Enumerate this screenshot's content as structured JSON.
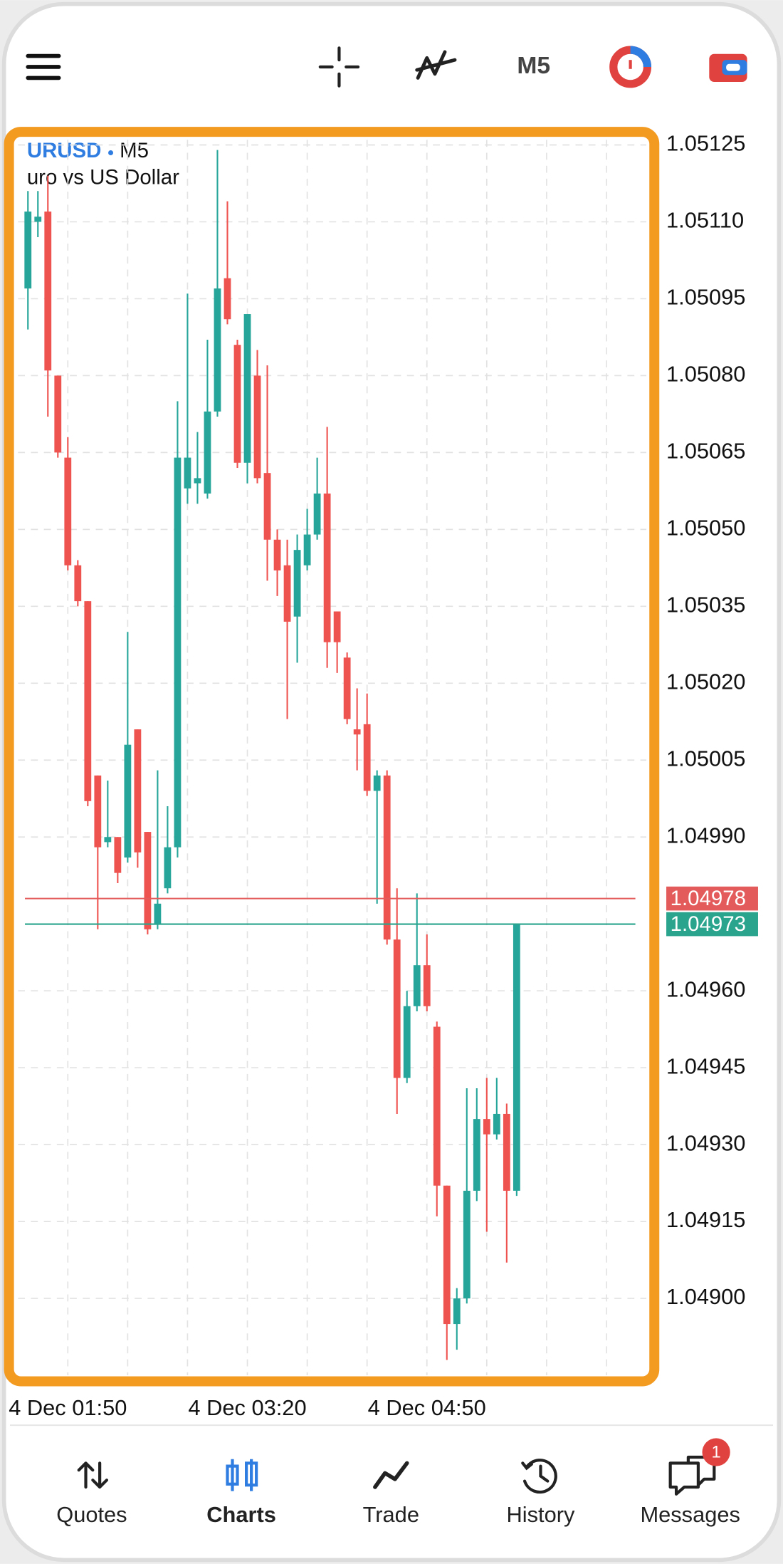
{
  "chart_data": {
    "type": "candlestick",
    "symbol": "URUSD",
    "timeframe": "M5",
    "description": "uro vs US Dollar",
    "categories": [
      null,
      null,
      null,
      null,
      "4 Dec 01:50",
      null,
      null,
      null,
      null,
      null,
      null,
      null,
      null,
      null,
      null,
      null,
      null,
      null,
      null,
      null,
      null,
      null,
      "4 Dec 03:20",
      null,
      null,
      null,
      null,
      null,
      null,
      null,
      null,
      null,
      null,
      null,
      null,
      null,
      null,
      null,
      null,
      null,
      "4 Dec 04:50",
      null,
      null,
      null,
      null,
      null,
      null,
      null,
      null,
      null
    ],
    "open": [
      1.05097,
      1.0511,
      1.05112,
      1.0508,
      1.05064,
      1.05043,
      1.05036,
      1.05002,
      1.04989,
      1.0499,
      1.04986,
      1.05011,
      1.04991,
      1.04973,
      1.0498,
      1.04988,
      1.05058,
      1.05059,
      1.05057,
      1.05073,
      1.05099,
      1.05086,
      1.05063,
      1.0508,
      1.05061,
      1.05048,
      1.05043,
      1.05033,
      1.05043,
      1.05049,
      1.05057,
      1.05034,
      1.05025,
      1.05011,
      1.05012,
      1.04999,
      1.05002,
      1.0497,
      1.04943,
      1.04957,
      1.04965,
      1.04953,
      1.04922,
      1.04895,
      1.049,
      1.04921,
      1.04935,
      1.04932,
      1.04936,
      1.04921
    ],
    "high": [
      1.05116,
      1.05116,
      1.05119,
      1.0508,
      1.05068,
      1.05044,
      1.05036,
      1.05002,
      1.05001,
      1.0499,
      1.0503,
      1.05011,
      1.04991,
      1.05003,
      1.04996,
      1.05075,
      1.05096,
      1.05069,
      1.05087,
      1.05124,
      1.05114,
      1.05087,
      1.05092,
      1.05085,
      1.05082,
      1.0505,
      1.05048,
      1.05049,
      1.05054,
      1.05064,
      1.0507,
      1.05034,
      1.05026,
      1.05019,
      1.05018,
      1.05003,
      1.05003,
      1.0498,
      1.0496,
      1.04979,
      1.04971,
      1.04954,
      1.04922,
      1.04902,
      1.04941,
      1.04941,
      1.04943,
      1.04943,
      1.04938,
      1.04973
    ],
    "low": [
      1.05089,
      1.05107,
      1.05072,
      1.05064,
      1.05042,
      1.05035,
      1.04996,
      1.04972,
      1.04988,
      1.04981,
      1.04985,
      1.04984,
      1.04971,
      1.04972,
      1.04979,
      1.04986,
      1.05055,
      1.05055,
      1.05056,
      1.05072,
      1.0509,
      1.05062,
      1.05059,
      1.05059,
      1.0504,
      1.05037,
      1.05013,
      1.05024,
      1.05042,
      1.05048,
      1.05023,
      1.05022,
      1.05012,
      1.05003,
      1.04998,
      1.04977,
      1.04969,
      1.04936,
      1.04942,
      1.04956,
      1.04956,
      1.04916,
      1.04888,
      1.0489,
      1.04899,
      1.04919,
      1.04913,
      1.04931,
      1.04907,
      1.0492
    ],
    "close": [
      1.05112,
      1.05111,
      1.05081,
      1.05065,
      1.05043,
      1.05036,
      1.04997,
      1.04988,
      1.0499,
      1.04983,
      1.05008,
      1.04987,
      1.04972,
      1.04977,
      1.04988,
      1.05064,
      1.05064,
      1.0506,
      1.05073,
      1.05097,
      1.05091,
      1.05063,
      1.05092,
      1.0506,
      1.05048,
      1.05042,
      1.05032,
      1.05046,
      1.05049,
      1.05057,
      1.05028,
      1.05028,
      1.05013,
      1.0501,
      1.04999,
      1.05002,
      1.0497,
      1.04943,
      1.04957,
      1.04965,
      1.04957,
      1.04922,
      1.04895,
      1.049,
      1.04921,
      1.04935,
      1.04932,
      1.04936,
      1.04921,
      1.04973
    ],
    "up_color": "#26a69a",
    "down_color": "#ef5350",
    "bid": 1.04978,
    "ask": 1.04973,
    "bid_color": "#e35b5a",
    "ask_color": "#2aa48d",
    "ylim": [
      1.04885,
      1.05126
    ],
    "yticks": [
      1.05125,
      {
        "value": 1.0511,
        "label": "1.05110"
      },
      1.05095,
      {
        "value": 1.0508,
        "label": "1.05080"
      },
      1.05065,
      {
        "value": 1.0505,
        "label": "1.05050"
      },
      1.05035,
      {
        "value": 1.0502,
        "label": "1.05020"
      },
      1.05005,
      {
        "value": 1.0499,
        "label": "1.04990"
      },
      {
        "value": 1.0496,
        "label": "1.04960"
      },
      1.04945,
      {
        "value": 1.0493,
        "label": "1.04930"
      },
      1.04915,
      {
        "value": 1.049,
        "label": "1.04900"
      }
    ],
    "grid": true
  },
  "nav": {
    "items": [
      {
        "label": "Quotes"
      },
      {
        "label": "Charts"
      },
      {
        "label": "Trade"
      },
      {
        "label": "History"
      },
      {
        "label": "Messages"
      }
    ],
    "active": 1,
    "badge": 1
  }
}
